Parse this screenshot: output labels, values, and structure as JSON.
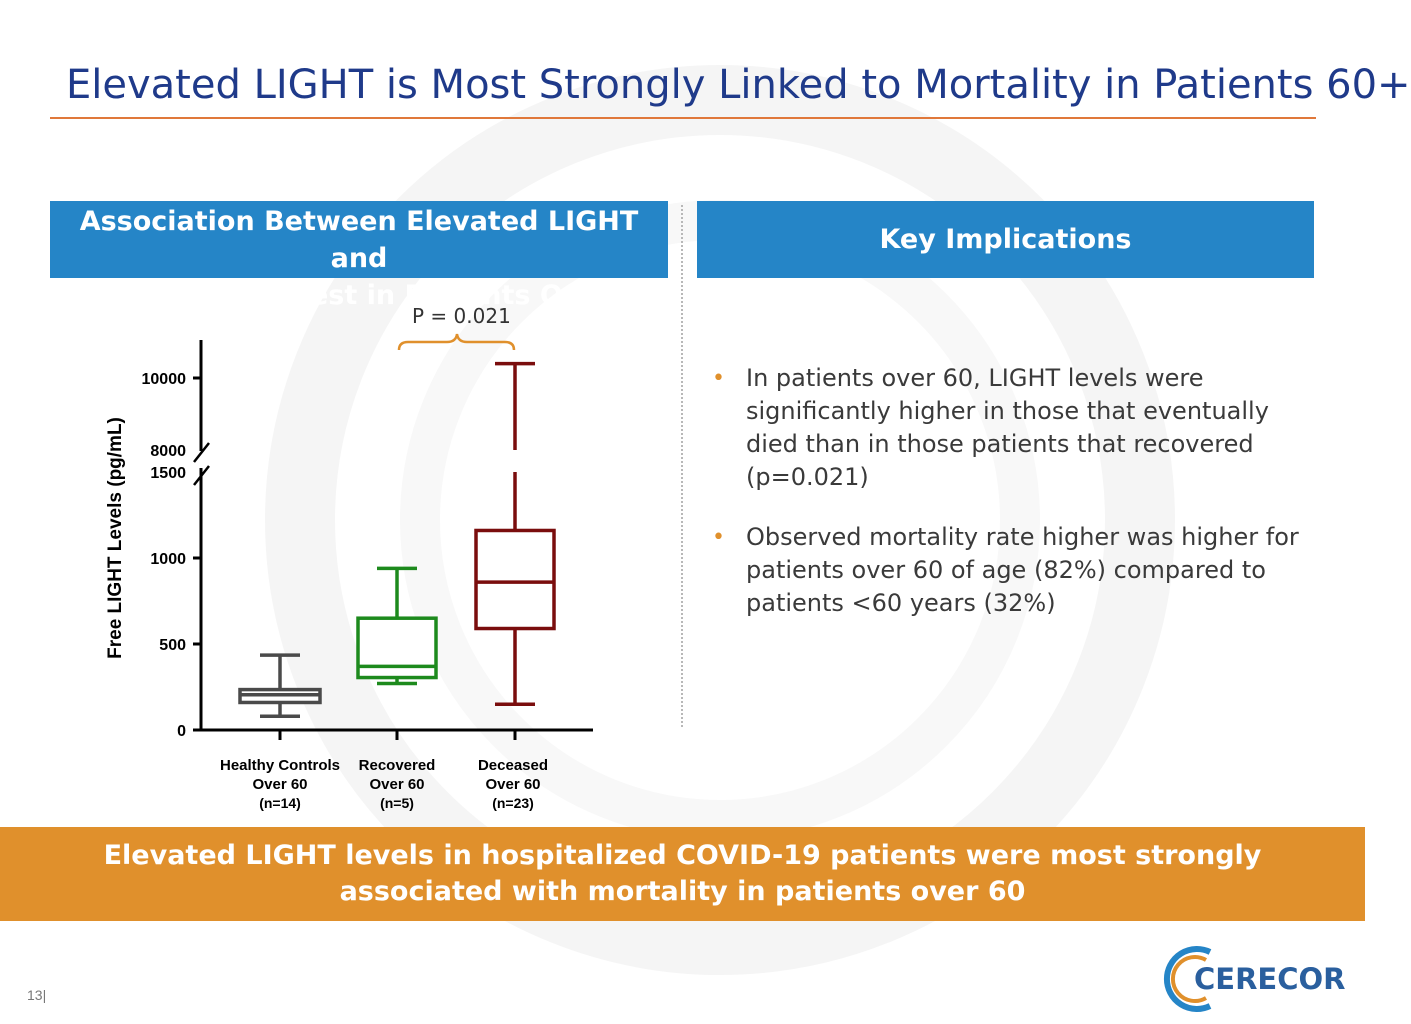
{
  "slide": {
    "title": "Elevated LIGHT is Most Strongly Linked to Mortality in Patients 60+",
    "page_number": "13|"
  },
  "left_panel": {
    "header_line1": "Association Between Elevated LIGHT and",
    "header_line2": "Mortality Strongest in Patients Over 60"
  },
  "right_panel": {
    "header": "Key Implications",
    "bullets": [
      "In patients over 60, LIGHT levels were significantly higher in those  that eventually died than in those patients that recovered (p=0.021)",
      "Observed mortality rate higher was higher for patients over 60 of age (82%) compared to patients <60 years (32%)"
    ]
  },
  "banner": {
    "line1": "Elevated LIGHT levels in hospitalized COVID-19 patients were most strongly",
    "line2": "associated with mortality in patients over 60"
  },
  "logo": {
    "text": "CEREC",
    "text2": "OR"
  },
  "colors": {
    "title": "#1f3a8a",
    "header_bg": "#2585c7",
    "banner_bg": "#e0902c",
    "accent_orange": "#e0902c",
    "healthy": "#4a4a4a",
    "recovered": "#1d8a1d",
    "deceased": "#7a0d0d"
  },
  "chart_data": {
    "type": "box",
    "ylabel": "Free LIGHT Levels (pg/mL)",
    "ytick_labels": [
      "0",
      "500",
      "1000",
      "1500",
      "8000",
      "10000"
    ],
    "y_axis_break": [
      1500,
      8000
    ],
    "categories": [
      {
        "line1": "Healthy Controls",
        "line2": "Over 60",
        "line3": "(n=14)"
      },
      {
        "line1": "Recovered",
        "line2": "Over 60",
        "line3": "(n=5)"
      },
      {
        "line1": "Deceased",
        "line2": "Over 60",
        "line3": "(n=23)"
      }
    ],
    "boxes": [
      {
        "name": "Healthy Controls Over 60",
        "min": 80,
        "q1": 160,
        "median": 205,
        "q3": 235,
        "max": 435
      },
      {
        "name": "Recovered Over 60",
        "min": 270,
        "q1": 305,
        "median": 370,
        "q3": 650,
        "max": 940
      },
      {
        "name": "Deceased Over 60",
        "min": 150,
        "q1": 590,
        "median": 860,
        "q3": 1160,
        "max": 10400
      }
    ],
    "annotation": "P =  0.021",
    "comparison": [
      "Recovered Over 60",
      "Deceased Over 60"
    ]
  }
}
